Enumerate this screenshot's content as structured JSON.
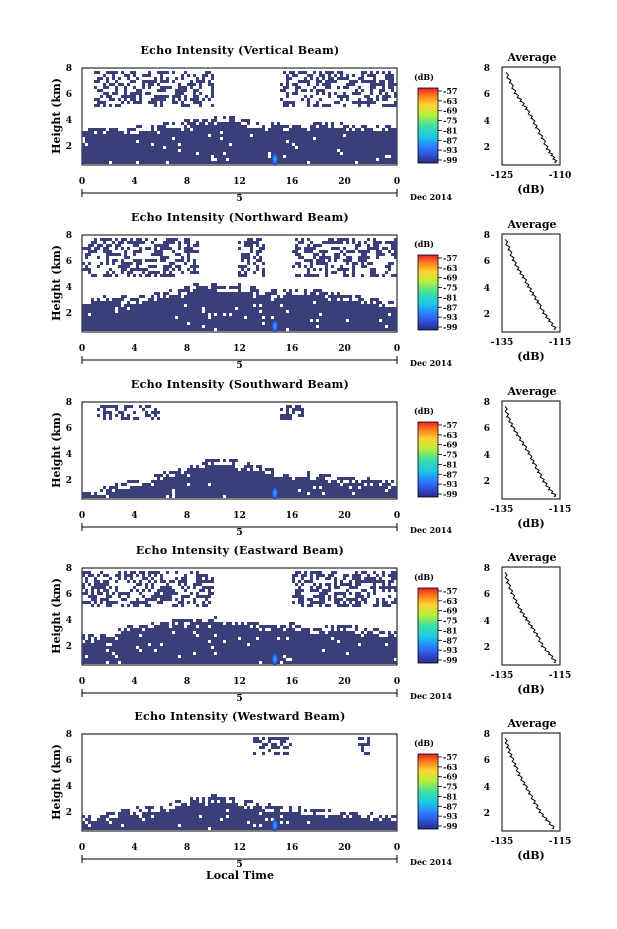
{
  "figure": {
    "xlabel": "Local Time",
    "date_label": "Dec 2014",
    "colorbar_unit": "(dB)",
    "colorbar_ticks": [
      "-57",
      "-63",
      "-69",
      "-75",
      "-81",
      "-87",
      "-93",
      "-99"
    ],
    "average_title": "Average",
    "average_xlabel": "(dB)",
    "colors": {
      "echo": "#3a3f7a",
      "core": "#1c5cff",
      "profile": "#000000"
    }
  },
  "chart_data": [
    {
      "type": "heatmap",
      "title": "Echo Intensity (Vertical Beam)",
      "ylabel": "Height (km)",
      "x_ticks": [
        "0",
        "4",
        "8",
        "12",
        "16",
        "20",
        "0"
      ],
      "day_label": "5",
      "y_ticks": [
        "2",
        "4",
        "6",
        "8"
      ],
      "xlim": [
        0,
        24
      ],
      "ylim": [
        0.8,
        8.2
      ],
      "echo_top_km": [
        3.4,
        3.3,
        3.3,
        3.4,
        3.5,
        3.6,
        3.7,
        3.9,
        4.0,
        4.1,
        4.2,
        4.3,
        4.1,
        3.9,
        3.8,
        3.8,
        3.7,
        3.7,
        3.8,
        3.8,
        3.7,
        3.7,
        3.6,
        3.6
      ],
      "upper_layer_km": [
        5.2,
        8.0
      ],
      "upper_layer_hours": [
        [
          1,
          10
        ],
        [
          15,
          24
        ]
      ],
      "average": {
        "title": "Average",
        "xlabel": "(dB)",
        "x_ticks": [
          "-125",
          "-110"
        ],
        "xlim": [
          -125,
          -110
        ],
        "y_ticks": [
          "2",
          "4",
          "6",
          "8"
        ],
        "x": [
          -124,
          -122.8,
          -121.5,
          -120,
          -118.6,
          -117.2,
          -116,
          -114.5,
          -113.2,
          -112,
          -111
        ],
        "y": [
          7.8,
          7.0,
          6.2,
          5.6,
          5.0,
          4.3,
          3.6,
          2.8,
          2.0,
          1.5,
          1.0
        ]
      }
    },
    {
      "type": "heatmap",
      "title": "Echo Intensity (Northward Beam)",
      "ylabel": "Height (km)",
      "x_ticks": [
        "0",
        "4",
        "8",
        "12",
        "16",
        "20",
        "0"
      ],
      "day_label": "5",
      "y_ticks": [
        "2",
        "4",
        "6",
        "8"
      ],
      "xlim": [
        0,
        24
      ],
      "ylim": [
        0.8,
        8.2
      ],
      "echo_top_km": [
        3.0,
        3.2,
        3.4,
        3.3,
        3.2,
        3.4,
        3.6,
        3.8,
        4.0,
        4.4,
        4.3,
        4.1,
        4.2,
        4.0,
        3.8,
        3.7,
        3.8,
        4.0,
        3.9,
        3.6,
        3.4,
        3.3,
        3.2,
        3.0
      ],
      "upper_layer_km": [
        5.0,
        8.0
      ],
      "upper_layer_hours": [
        [
          0,
          9
        ],
        [
          12,
          14
        ],
        [
          16,
          24
        ]
      ],
      "average": {
        "title": "Average",
        "xlabel": "(dB)",
        "x_ticks": [
          "-135",
          "-115"
        ],
        "xlim": [
          -135,
          -115
        ],
        "y_ticks": [
          "2",
          "4",
          "6",
          "8"
        ],
        "x": [
          -134,
          -132.5,
          -131,
          -129.3,
          -127.5,
          -125.8,
          -124.2,
          -122.5,
          -120.5,
          -118.5,
          -116.5
        ],
        "y": [
          7.8,
          7.0,
          6.2,
          5.5,
          4.9,
          4.2,
          3.6,
          3.0,
          2.2,
          1.6,
          1.0
        ]
      }
    },
    {
      "type": "heatmap",
      "title": "Echo Intensity (Southward Beam)",
      "ylabel": "Height (km)",
      "x_ticks": [
        "0",
        "4",
        "8",
        "12",
        "16",
        "20",
        "0"
      ],
      "day_label": "5",
      "y_ticks": [
        "2",
        "4",
        "6",
        "8"
      ],
      "xlim": [
        0,
        24
      ],
      "ylim": [
        0.8,
        8.2
      ],
      "echo_top_km": [
        1.2,
        1.3,
        1.5,
        1.8,
        2.0,
        2.2,
        2.5,
        2.8,
        3.1,
        3.4,
        3.7,
        3.6,
        3.5,
        3.2,
        3.0,
        2.8,
        2.7,
        2.6,
        2.5,
        2.4,
        2.3,
        2.2,
        2.1,
        2.0
      ],
      "upper_layer_km": [
        6.8,
        8.0
      ],
      "upper_layer_hours": [
        [
          1,
          6
        ],
        [
          15,
          17
        ]
      ],
      "average": {
        "title": "Average",
        "xlabel": "(dB)",
        "x_ticks": [
          "-135",
          "-115"
        ],
        "xlim": [
          -135,
          -115
        ],
        "y_ticks": [
          "2",
          "4",
          "6",
          "8"
        ],
        "x": [
          -134,
          -133,
          -131.5,
          -129.6,
          -127.5,
          -125.6,
          -124,
          -122.3,
          -120.5,
          -118.5,
          -116.5
        ],
        "y": [
          7.8,
          7.0,
          6.3,
          5.6,
          4.9,
          4.2,
          3.5,
          2.8,
          2.1,
          1.5,
          1.0
        ]
      }
    },
    {
      "type": "heatmap",
      "title": "Echo Intensity (Eastward Beam)",
      "ylabel": "Height (km)",
      "x_ticks": [
        "0",
        "4",
        "8",
        "12",
        "16",
        "20",
        "0"
      ],
      "day_label": "5",
      "y_ticks": [
        "2",
        "4",
        "6",
        "8"
      ],
      "xlim": [
        0,
        24
      ],
      "ylim": [
        0.8,
        8.2
      ],
      "echo_top_km": [
        2.8,
        3.0,
        3.2,
        3.4,
        3.6,
        3.8,
        3.8,
        4.0,
        4.1,
        4.2,
        4.3,
        4.0,
        3.9,
        3.8,
        3.7,
        3.6,
        3.8,
        3.6,
        3.4,
        3.6,
        3.7,
        3.5,
        3.4,
        3.2
      ],
      "upper_layer_km": [
        5.3,
        8.0
      ],
      "upper_layer_hours": [
        [
          0,
          10
        ],
        [
          16,
          24
        ]
      ],
      "average": {
        "title": "Average",
        "xlabel": "(dB)",
        "x_ticks": [
          "-135",
          "-115"
        ],
        "xlim": [
          -135,
          -115
        ],
        "y_ticks": [
          "2",
          "4",
          "6",
          "8"
        ],
        "x": [
          -134,
          -133,
          -131.5,
          -130,
          -128.3,
          -126.4,
          -124.6,
          -122.8,
          -121,
          -118.5,
          -116.5
        ],
        "y": [
          7.8,
          7.0,
          6.2,
          5.5,
          4.8,
          4.2,
          3.6,
          3.0,
          2.2,
          1.6,
          1.0
        ]
      }
    },
    {
      "type": "heatmap",
      "title": "Echo Intensity (Westward Beam)",
      "ylabel": "Height (km)",
      "x_ticks": [
        "0",
        "4",
        "8",
        "12",
        "16",
        "20",
        "0"
      ],
      "day_label": "5",
      "y_ticks": [
        "2",
        "4",
        "6",
        "8"
      ],
      "xlim": [
        0,
        24
      ],
      "ylim": [
        0.8,
        8.2
      ],
      "echo_top_km": [
        1.8,
        1.9,
        2.0,
        2.1,
        2.3,
        2.5,
        2.6,
        2.8,
        3.0,
        3.2,
        3.3,
        3.2,
        3.0,
        2.8,
        2.6,
        2.5,
        2.4,
        2.3,
        2.2,
        2.1,
        2.1,
        2.0,
        1.9,
        1.8
      ],
      "upper_layer_km": [
        6.5,
        8.0
      ],
      "upper_layer_hours": [
        [
          13,
          16
        ],
        [
          21,
          22
        ]
      ],
      "average": {
        "title": "Average",
        "xlabel": "(dB)",
        "x_ticks": [
          "-135",
          "-115"
        ],
        "xlim": [
          -135,
          -115
        ],
        "y_ticks": [
          "2",
          "4",
          "6",
          "8"
        ],
        "x": [
          -134,
          -133,
          -131.8,
          -130.4,
          -129,
          -127.2,
          -125.4,
          -123.6,
          -121.8,
          -119.5,
          -117
        ],
        "y": [
          7.8,
          7.1,
          6.4,
          5.7,
          5.0,
          4.3,
          3.6,
          2.9,
          2.2,
          1.6,
          1.0
        ]
      }
    }
  ]
}
